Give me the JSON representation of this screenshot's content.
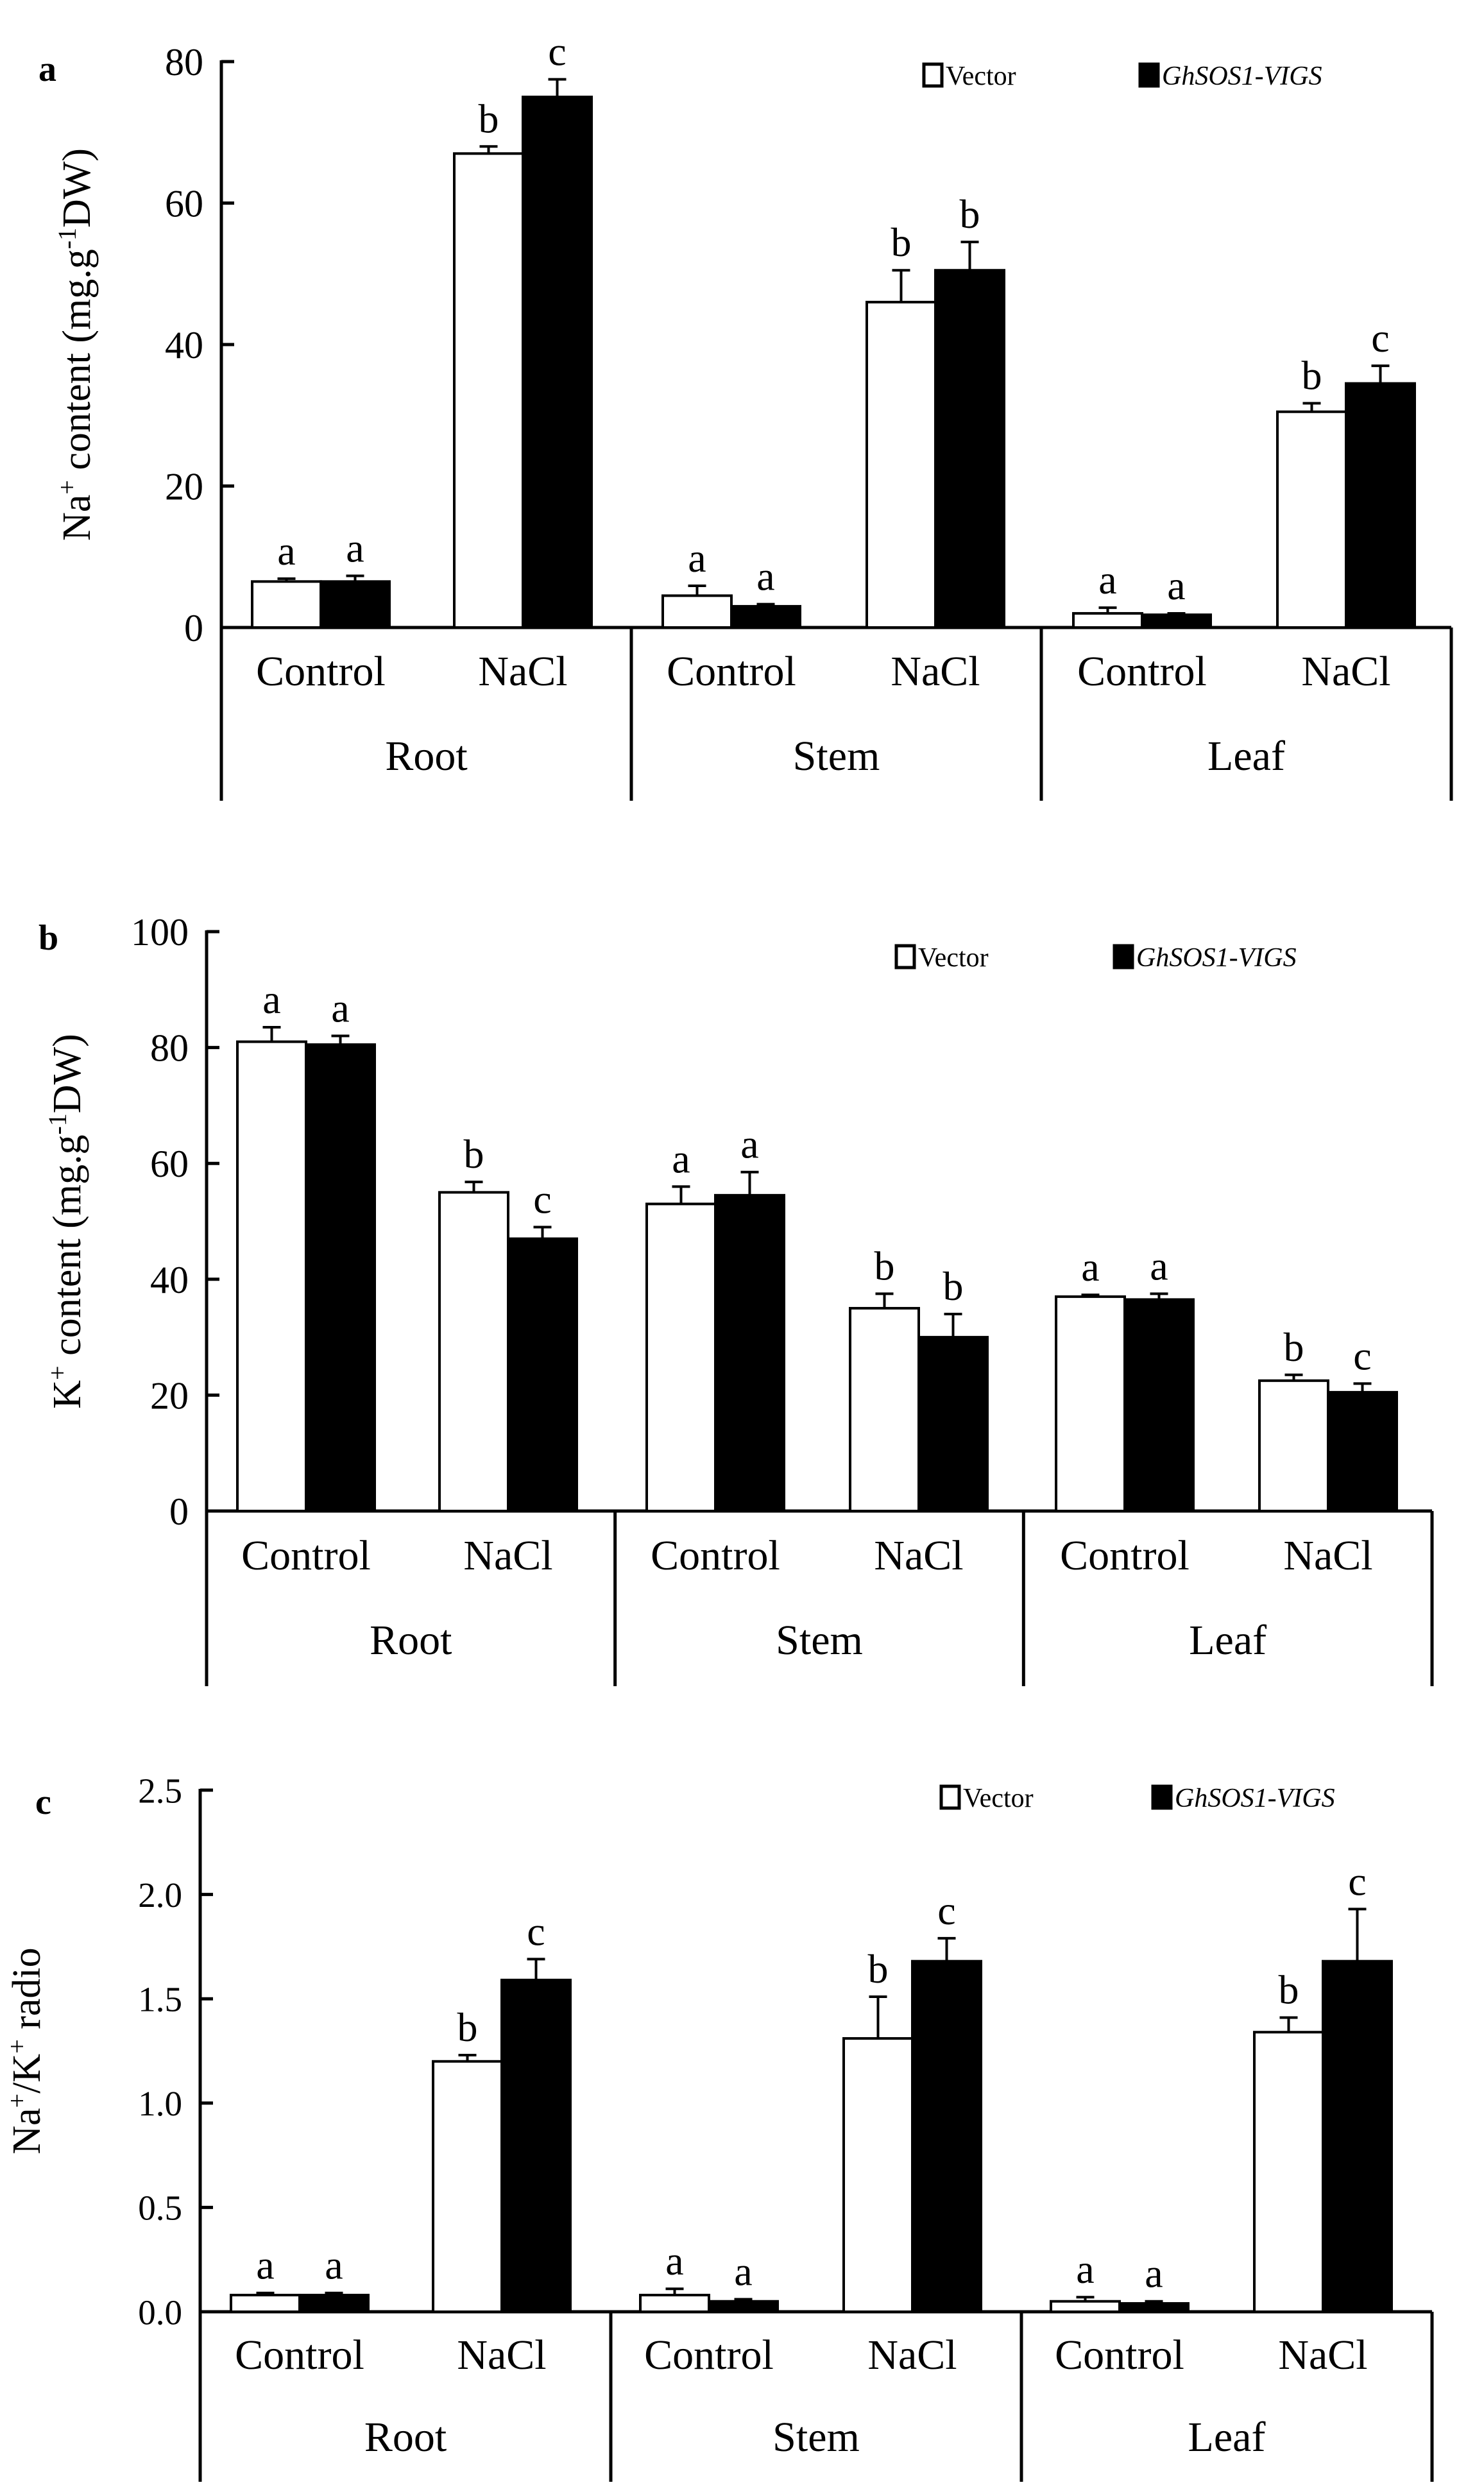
{
  "legend": {
    "vector_label": "Vector",
    "vigs_label": "GhSOS1-VIGS"
  },
  "colors": {
    "vector_fill": "#ffffff",
    "vigs_fill": "#000000",
    "axis": "#000000"
  },
  "chart_data": [
    {
      "type": "bar",
      "panel_label": "a",
      "ylabel_main": "Na",
      "ylabel_sup1": "+",
      "ylabel_mid": " content (mg.g",
      "ylabel_sup2": "-1",
      "ylabel_end": "DW)",
      "ylim": [
        0,
        80
      ],
      "yticks": [
        0,
        20,
        40,
        60,
        80
      ],
      "ytick_labels": [
        "0",
        "20",
        "40",
        "60",
        "80"
      ],
      "groups": [
        "Root",
        "Stem",
        "Leaf"
      ],
      "categories": [
        "Control",
        "NaCl",
        "Control",
        "NaCl",
        "Control",
        "NaCl"
      ],
      "legend_position": "top-right",
      "grid": false,
      "series": [
        {
          "name": "Vector",
          "values": [
            6.5,
            67,
            4.5,
            46,
            2,
            30.5
          ],
          "errors": [
            0.4,
            1.0,
            1.4,
            4.5,
            0.8,
            1.2
          ],
          "letters": [
            "a",
            "b",
            "a",
            "b",
            "a",
            "b"
          ]
        },
        {
          "name": "GhSOS1-VIGS",
          "values": [
            6.5,
            75,
            3,
            50.5,
            1.8,
            34.5
          ],
          "errors": [
            0.8,
            2.5,
            0.3,
            4.0,
            0.2,
            2.5
          ],
          "letters": [
            "a",
            "c",
            "a",
            "b",
            "a",
            "c"
          ]
        }
      ]
    },
    {
      "type": "bar",
      "panel_label": "b",
      "ylabel_main": "K",
      "ylabel_sup1": "+",
      "ylabel_mid": " content (mg.g",
      "ylabel_sup2": "-1",
      "ylabel_end": "DW)",
      "ylim": [
        0,
        100
      ],
      "yticks": [
        0,
        20,
        40,
        60,
        80,
        100
      ],
      "ytick_labels": [
        "0",
        "20",
        "40",
        "60",
        "80",
        "100"
      ],
      "groups": [
        "Root",
        "Stem",
        "Leaf"
      ],
      "categories": [
        "Control",
        "NaCl",
        "Control",
        "NaCl",
        "Control",
        "NaCl"
      ],
      "legend_position": "top-right",
      "grid": false,
      "series": [
        {
          "name": "Vector",
          "values": [
            81,
            55,
            53,
            35,
            37,
            22.5
          ],
          "errors": [
            2.5,
            1.8,
            3.0,
            2.5,
            0.3,
            1.0
          ],
          "letters": [
            "a",
            "b",
            "a",
            "b",
            "a",
            "b"
          ]
        },
        {
          "name": "GhSOS1-VIGS",
          "values": [
            80.5,
            47,
            54.5,
            30,
            36.5,
            20.5
          ],
          "errors": [
            1.5,
            2.0,
            4.0,
            4.0,
            1.0,
            1.5
          ],
          "letters": [
            "a",
            "c",
            "a",
            "b",
            "a",
            "c"
          ]
        }
      ]
    },
    {
      "type": "bar",
      "panel_label": "c",
      "ylabel_main": "Na",
      "ylabel_sup1": "+",
      "ylabel_mid": "/K",
      "ylabel_sup2": "+",
      "ylabel_end": " radio",
      "ylim": [
        0,
        2.5
      ],
      "yticks": [
        0,
        0.5,
        1.0,
        1.5,
        2.0,
        2.5
      ],
      "ytick_labels": [
        "0.0",
        "0.5",
        "1.0",
        "1.5",
        "2.0",
        "2.5"
      ],
      "groups": [
        "Root",
        "Stem",
        "Leaf"
      ],
      "categories": [
        "Control",
        "NaCl",
        "Control",
        "NaCl",
        "Control",
        "NaCl"
      ],
      "legend_position": "top-right",
      "grid": false,
      "series": [
        {
          "name": "Vector",
          "values": [
            0.08,
            1.2,
            0.08,
            1.31,
            0.05,
            1.34
          ],
          "errors": [
            0.01,
            0.03,
            0.03,
            0.2,
            0.02,
            0.07
          ],
          "letters": [
            "a",
            "b",
            "a",
            "b",
            "a",
            "b"
          ]
        },
        {
          "name": "GhSOS1-VIGS",
          "values": [
            0.08,
            1.59,
            0.05,
            1.68,
            0.04,
            1.68
          ],
          "errors": [
            0.01,
            0.1,
            0.01,
            0.11,
            0.01,
            0.25
          ],
          "letters": [
            "a",
            "c",
            "a",
            "c",
            "a",
            "c"
          ]
        }
      ]
    }
  ]
}
